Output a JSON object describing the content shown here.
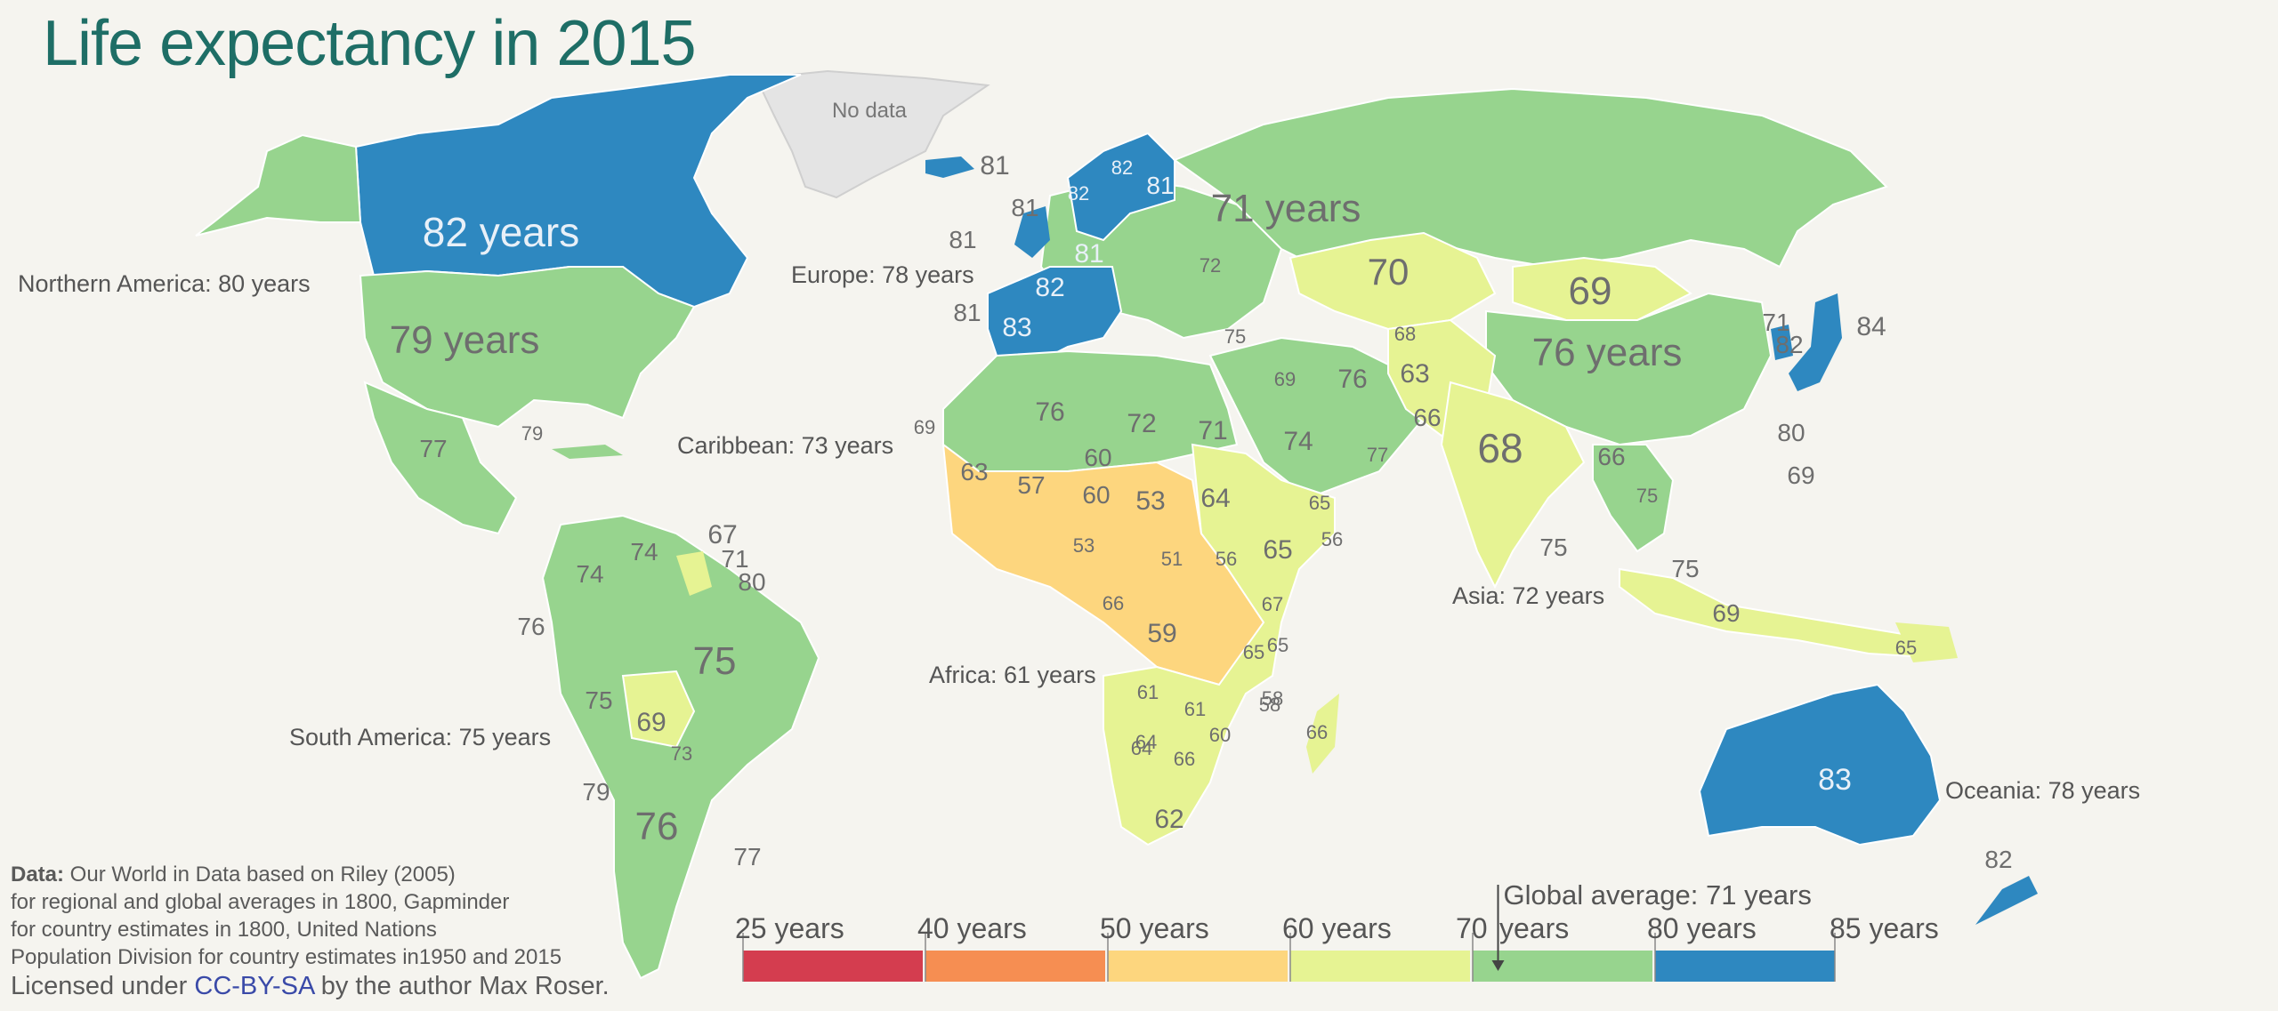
{
  "title": "Life expectancy in 2015",
  "colors": {
    "background": "#f5f4ef",
    "title": "#1e6e66",
    "bin_25_40": "#d43d4f",
    "bin_40_50": "#f68e52",
    "bin_50_60": "#fdd67e",
    "bin_60_70": "#e6f393",
    "bin_70_80": "#97d48e",
    "bin_80_85": "#2e88c0",
    "no_data": "#e4e4e4"
  },
  "regions": {
    "northern_america": "Northern America: 80 years",
    "europe": "Europe: 78 years",
    "caribbean": "Caribbean: 73 years",
    "south_america": "South America: 75 years",
    "africa": "Africa: 61 years",
    "asia": "Asia: 72 years",
    "oceania": "Oceania: 78 years"
  },
  "no_data_label": "No data",
  "country_labels": [
    {
      "id": "canada",
      "text": "82 years"
    },
    {
      "id": "usa",
      "text": "79 years"
    },
    {
      "id": "russia",
      "text": "71 years"
    },
    {
      "id": "china",
      "text": "76 years"
    },
    {
      "id": "kazakhstan",
      "text": "70"
    },
    {
      "id": "mongolia",
      "text": "69"
    },
    {
      "id": "india",
      "text": "68"
    },
    {
      "id": "brazil",
      "text": "75"
    },
    {
      "id": "argentina",
      "text": "76"
    },
    {
      "id": "australia",
      "text": "83"
    },
    {
      "id": "bolivia",
      "text": "69"
    },
    {
      "id": "peru",
      "text": "75"
    },
    {
      "id": "colombia",
      "text": "74"
    },
    {
      "id": "venezuela",
      "text": "74"
    },
    {
      "id": "mexico",
      "text": "77"
    },
    {
      "id": "iceland",
      "text": "81"
    },
    {
      "id": "norway",
      "text": "82"
    },
    {
      "id": "sweden",
      "text": "82"
    },
    {
      "id": "finland",
      "text": "81"
    },
    {
      "id": "france",
      "text": "82"
    },
    {
      "id": "spain",
      "text": "83"
    },
    {
      "id": "germany",
      "text": "81"
    },
    {
      "id": "uk",
      "text": "81"
    },
    {
      "id": "ireland",
      "text": "81"
    },
    {
      "id": "portugal",
      "text": "81"
    },
    {
      "id": "japan",
      "text": "84"
    },
    {
      "id": "algeria",
      "text": "76"
    },
    {
      "id": "libya",
      "text": "72"
    },
    {
      "id": "egypt",
      "text": "71"
    },
    {
      "id": "saudi",
      "text": "74"
    },
    {
      "id": "iran",
      "text": "76"
    },
    {
      "id": "afghanistan",
      "text": "63"
    },
    {
      "id": "pakistan",
      "text": "66"
    },
    {
      "id": "mali",
      "text": "57"
    },
    {
      "id": "niger",
      "text": "60"
    },
    {
      "id": "chad",
      "text": "53"
    },
    {
      "id": "sudan",
      "text": "64"
    },
    {
      "id": "ethiopia",
      "text": "65"
    },
    {
      "id": "somalia",
      "text": "56"
    },
    {
      "id": "nigeria",
      "text": "53"
    },
    {
      "id": "car",
      "text": "51"
    },
    {
      "id": "south_sudan",
      "text": "56"
    },
    {
      "id": "drc",
      "text": "59"
    },
    {
      "id": "kenya",
      "text": "67"
    },
    {
      "id": "tanzania",
      "text": "65"
    },
    {
      "id": "angola",
      "text": "61"
    },
    {
      "id": "zambia",
      "text": "61"
    },
    {
      "id": "namibia",
      "text": "64"
    },
    {
      "id": "botswana",
      "text": "66"
    },
    {
      "id": "mozambique",
      "text": "58"
    },
    {
      "id": "zimbabwe",
      "text": "60"
    },
    {
      "id": "south_africa",
      "text": "62"
    },
    {
      "id": "madagascar",
      "text": "66"
    },
    {
      "id": "mauritania",
      "text": "63"
    },
    {
      "id": "western_sahara",
      "text": "69"
    },
    {
      "id": "yemen",
      "text": "65"
    },
    {
      "id": "oman",
      "text": "77"
    },
    {
      "id": "thailand",
      "text": "75"
    },
    {
      "id": "indonesia",
      "text": "69"
    },
    {
      "id": "png",
      "text": "65"
    },
    {
      "id": "malaysia",
      "text": "75"
    },
    {
      "id": "taiwan",
      "text": "80"
    },
    {
      "id": "philippines",
      "text": "69"
    },
    {
      "id": "korea",
      "text": "82"
    },
    {
      "id": "nkorea",
      "text": "71"
    },
    {
      "id": "new_zealand",
      "text": "82"
    },
    {
      "id": "sri_lanka",
      "text": "75"
    },
    {
      "id": "myanmar",
      "text": "66"
    },
    {
      "id": "cuba",
      "text": "79"
    },
    {
      "id": "guyana",
      "text": "67"
    },
    {
      "id": "suriname",
      "text": "71"
    },
    {
      "id": "french_guiana",
      "text": "80"
    },
    {
      "id": "ecuador",
      "text": "76"
    },
    {
      "id": "chile",
      "text": "79"
    },
    {
      "id": "uruguay",
      "text": "77"
    },
    {
      "id": "paraguay",
      "text": "73"
    },
    {
      "id": "turkey",
      "text": "75"
    },
    {
      "id": "ukraine",
      "text": "72"
    },
    {
      "id": "iraq",
      "text": "69"
    },
    {
      "id": "turkmenistan",
      "text": "68"
    },
    {
      "id": "kenya_n",
      "text": "65"
    },
    {
      "id": "sahel_60",
      "text": "60"
    },
    {
      "id": "gabon",
      "text": "64"
    },
    {
      "id": "congo",
      "text": "66"
    },
    {
      "id": "cameroon",
      "text": "58"
    }
  ],
  "legend": {
    "ticks": [
      "25 years",
      "40 years",
      "50 years",
      "60 years",
      "70",
      "years",
      "80 years",
      "85 years"
    ],
    "global_average": "Global average: 71 years",
    "global_average_value": 71
  },
  "credits": {
    "data_prefix": "Data:",
    "line1": " Our World in Data based on Riley (2005)",
    "line2": "for regional and global averages in 1800, Gapminder",
    "line3": "for country estimates in 1800, United Nations",
    "line4": "Population Division for country estimates in1950 and 2015",
    "license_prefix": "Licensed under ",
    "license_link": "CC-BY-SA",
    "license_suffix": " by the author Max Roser."
  }
}
